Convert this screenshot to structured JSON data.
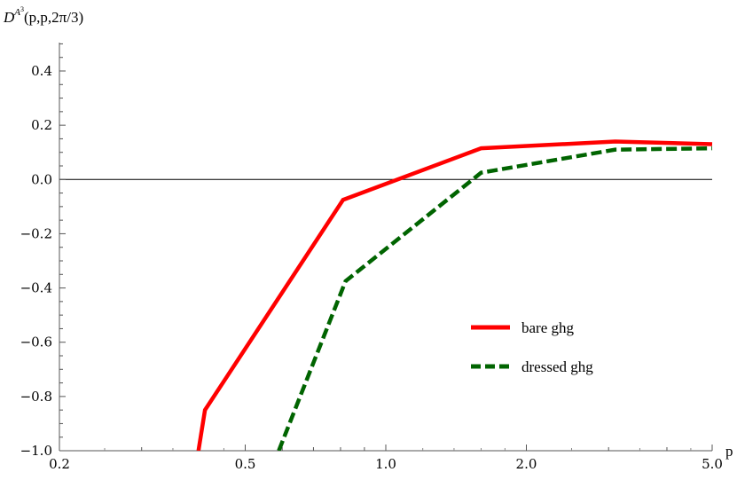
{
  "chart_data": {
    "type": "line",
    "title": "",
    "ylabel": {
      "base": "D",
      "sup": "A",
      "subsup": "3",
      "rest": "(p,p,2π/3)"
    },
    "xlabel": "p",
    "x_scale": "log",
    "xlim": [
      0.2,
      5.0
    ],
    "ylim": [
      -1.0,
      0.5
    ],
    "x_ticks": [
      {
        "value": 0.2,
        "label": "0.2"
      },
      {
        "value": 0.5,
        "label": "0.5"
      },
      {
        "value": 1.0,
        "label": "1.0"
      },
      {
        "value": 2.0,
        "label": "2.0"
      },
      {
        "value": 5.0,
        "label": "5.0"
      }
    ],
    "y_ticks": [
      {
        "value": 0.4,
        "label": "0.4"
      },
      {
        "value": 0.2,
        "label": "0.2"
      },
      {
        "value": 0.0,
        "label": "0.0"
      },
      {
        "value": -0.2,
        "label": "−0.2"
      },
      {
        "value": -0.4,
        "label": "−0.4"
      },
      {
        "value": -0.6,
        "label": "−0.6"
      },
      {
        "value": -0.8,
        "label": "−0.8"
      },
      {
        "value": -1.0,
        "label": "−1.0"
      }
    ],
    "zero_line": true,
    "grid": false,
    "legend_position": "right",
    "series": [
      {
        "name": "bare ghg",
        "color": "#ff0000",
        "dash": "solid",
        "x": [
          0.397,
          0.41,
          0.81,
          1.6,
          3.1,
          5.0
        ],
        "y": [
          -1.0,
          -0.85,
          -0.075,
          0.115,
          0.14,
          0.13
        ]
      },
      {
        "name": "dressed ghg",
        "color": "#006400",
        "dash": "dashed",
        "x": [
          0.59,
          0.82,
          1.6,
          3.1,
          5.0
        ],
        "y": [
          -1.0,
          -0.375,
          0.025,
          0.11,
          0.115
        ]
      }
    ]
  }
}
